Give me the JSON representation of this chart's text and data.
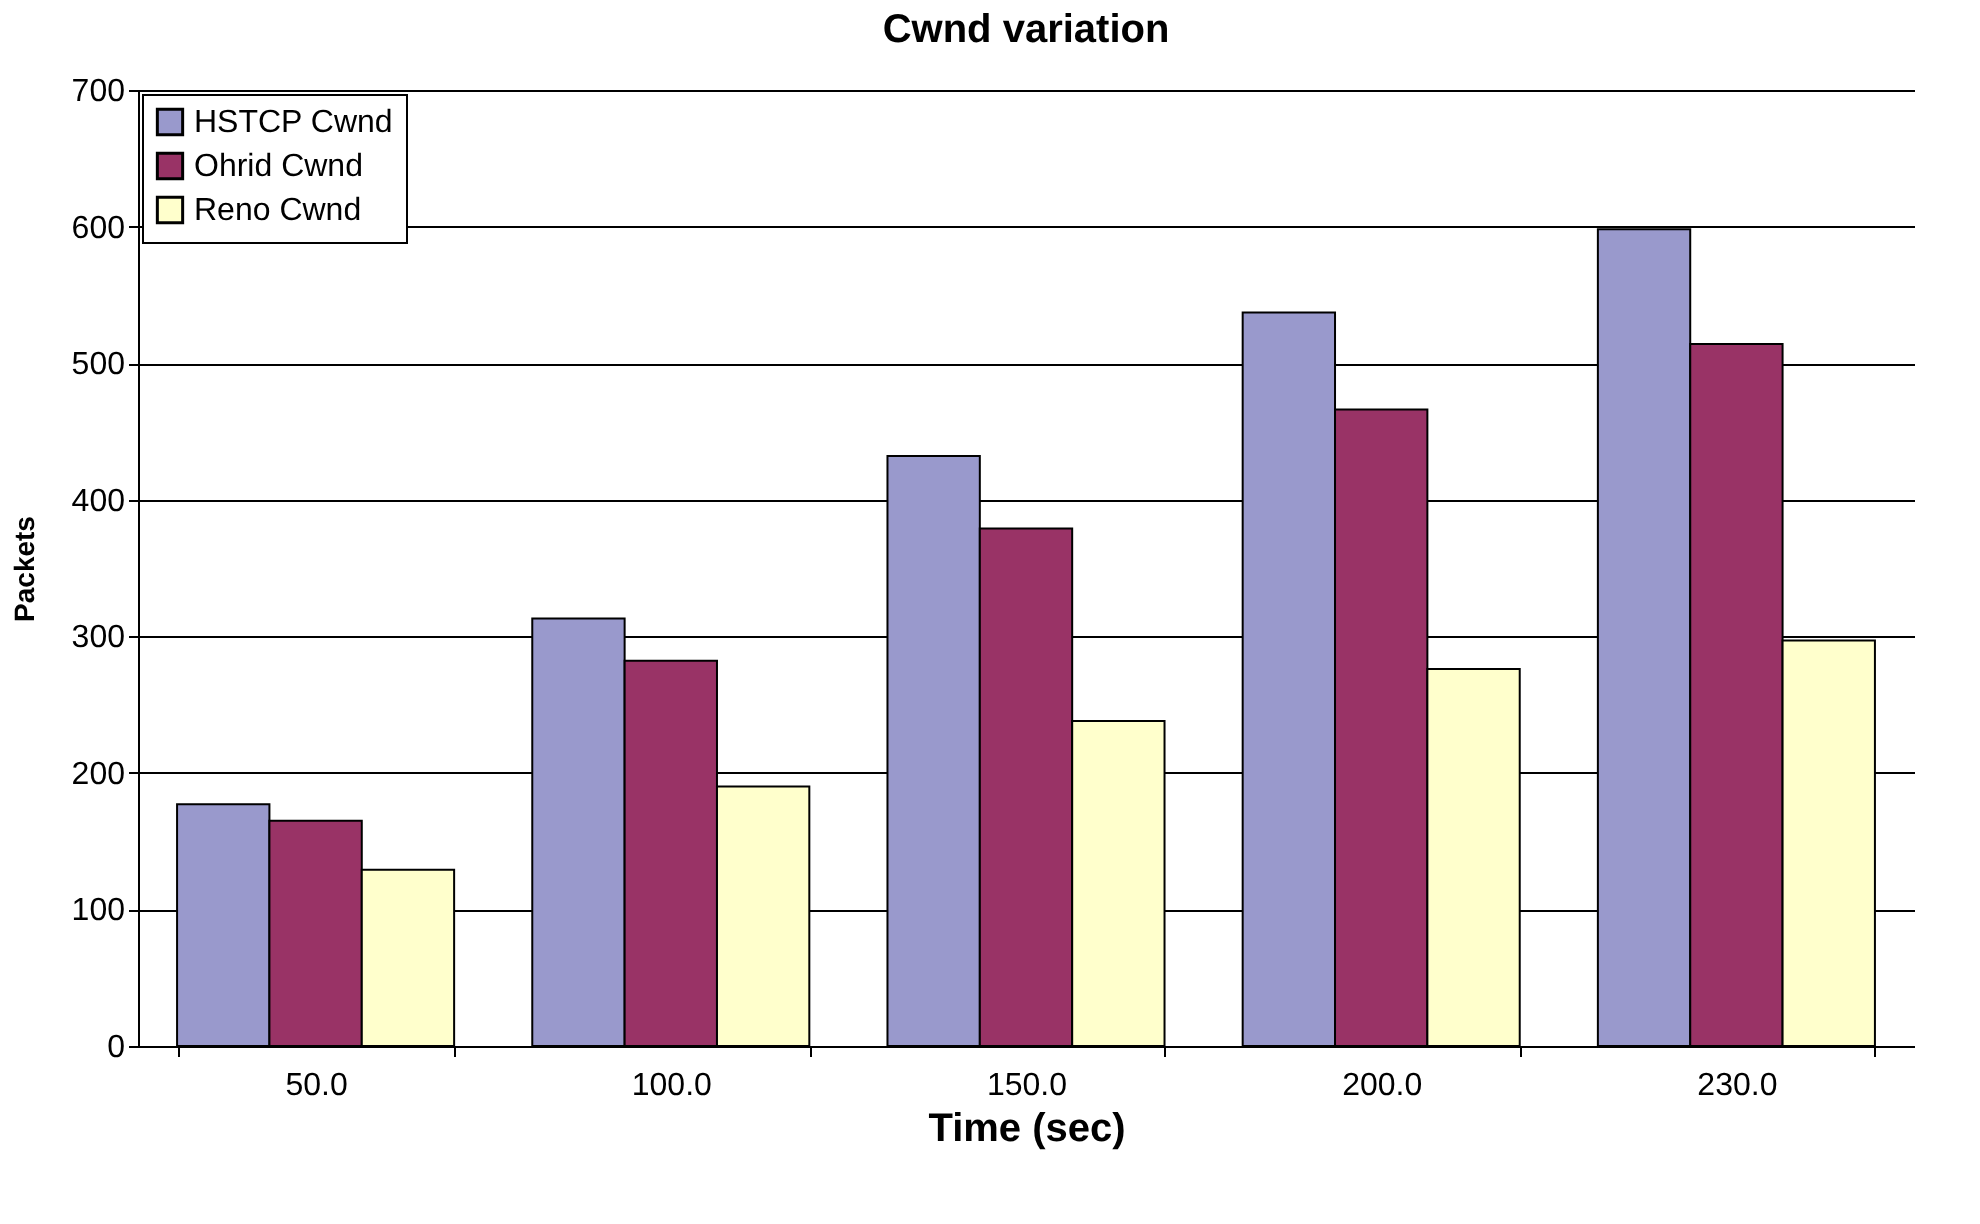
{
  "chart_data": {
    "type": "bar",
    "title": "Cwnd variation",
    "xlabel": "Time (sec)",
    "ylabel": "Packets",
    "categories": [
      "50.0",
      "100.0",
      "150.0",
      "200.0",
      "230.0"
    ],
    "series": [
      {
        "name": "HSTCP Cwnd",
        "color": "#9999cc",
        "values": [
          177,
          313,
          432,
          537,
          598
        ]
      },
      {
        "name": "Ohrid Cwnd",
        "color": "#993366",
        "values": [
          165,
          282,
          379,
          466,
          514
        ]
      },
      {
        "name": "Reno Cwnd",
        "color": "#ffffcc",
        "values": [
          129,
          190,
          238,
          276,
          297
        ]
      }
    ],
    "ylim": [
      0,
      700
    ],
    "yticks": [
      0,
      100,
      200,
      300,
      400,
      500,
      600,
      700
    ],
    "grid": "y",
    "legend": "top left"
  }
}
